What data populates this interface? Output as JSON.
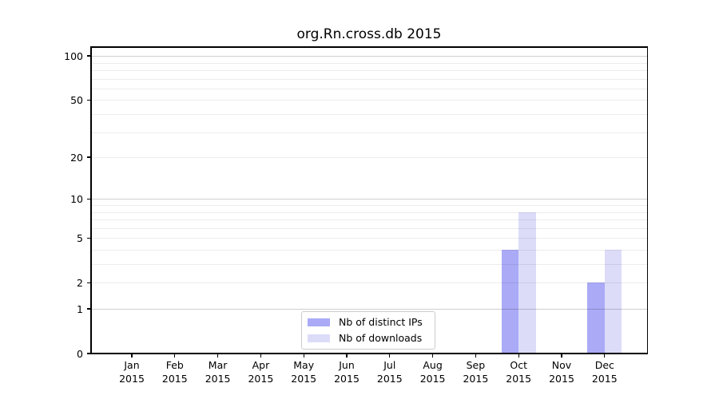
{
  "chart_data": {
    "type": "bar",
    "title": "org.Rn.cross.db 2015",
    "categories": [
      "Jan",
      "Feb",
      "Mar",
      "Apr",
      "May",
      "Jun",
      "Jul",
      "Aug",
      "Sep",
      "Oct",
      "Nov",
      "Dec"
    ],
    "year_label": "2015",
    "series": [
      {
        "name": "Nb of distinct IPs",
        "color": "#aaaaf7",
        "values": [
          0,
          0,
          0,
          0,
          0,
          0,
          0,
          0,
          0,
          4,
          0,
          2
        ]
      },
      {
        "name": "Nb of downloads",
        "color": "#dcdcf9",
        "values": [
          0,
          0,
          0,
          0,
          0,
          0,
          0,
          0,
          0,
          8,
          0,
          4
        ]
      }
    ],
    "yticks": [
      0,
      1,
      2,
      5,
      10,
      20,
      50,
      100
    ],
    "y_scale": "log10(value+1)",
    "ylim": [
      0,
      115
    ],
    "grid_major_values": [
      1,
      10,
      100
    ],
    "grid_minor_values": [
      2,
      3,
      4,
      5,
      6,
      7,
      8,
      9,
      20,
      30,
      40,
      50,
      60,
      70,
      80,
      90
    ],
    "legend_position": "lower center",
    "grid_on": true,
    "colors": {
      "axis": "#000000",
      "grid_minor": "#ececec",
      "grid_major": "#d1d1d1",
      "background": "#ffffff"
    }
  }
}
